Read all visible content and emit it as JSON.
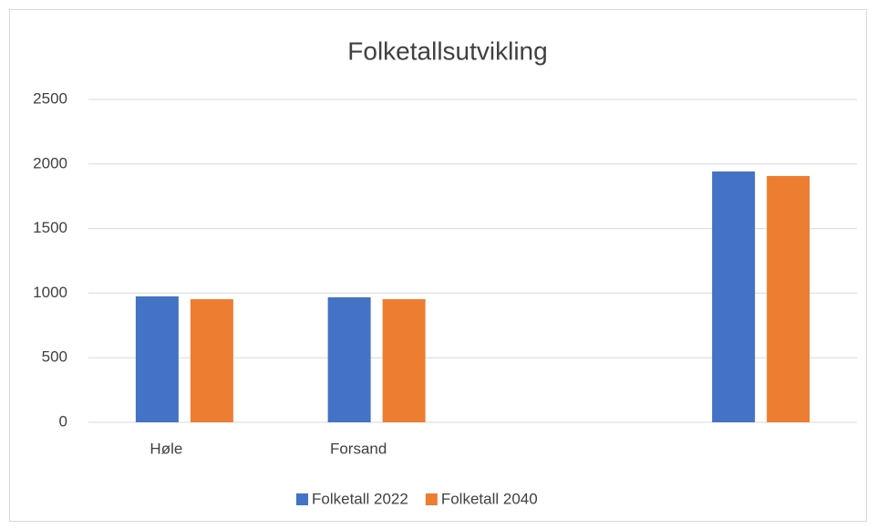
{
  "chart_data": {
    "type": "bar",
    "title": "Folketallsutvikling",
    "categories": [
      "Høle",
      "Forsand",
      null,
      null
    ],
    "series": [
      {
        "name": "Folketall 2022",
        "color": "#4472c4",
        "values": [
          975,
          968,
          null,
          1942
        ]
      },
      {
        "name": "Folketall 2040",
        "color": "#ed7d31",
        "values": [
          953,
          953,
          null,
          1907
        ]
      }
    ],
    "ylim": [
      0,
      2500
    ],
    "yticks": [
      0,
      500,
      1000,
      1500,
      2000,
      2500
    ],
    "grid": true,
    "legend": "bottom"
  }
}
